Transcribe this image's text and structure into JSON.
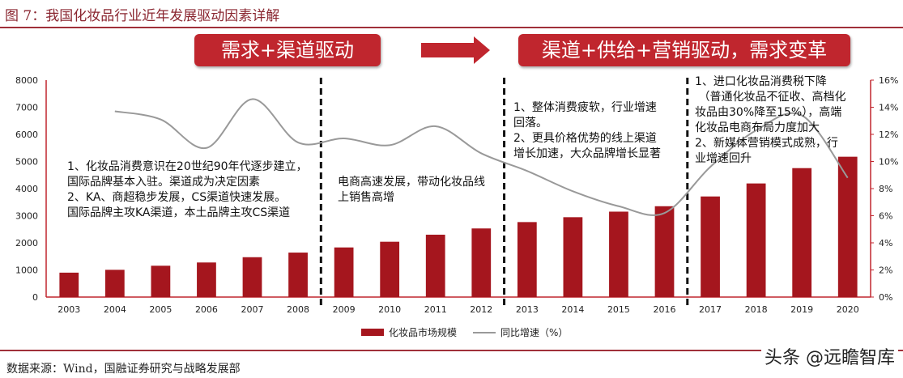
{
  "header": {
    "title": "图 7：我国化妆品行业近年发展驱动因素详解",
    "stage1_label": "需求+渠道驱动",
    "stage2_label": "渠道+供给+营销驱动，需求变革"
  },
  "colors": {
    "bar": "#a5161e",
    "line": "#999999",
    "banner": "#c0262e",
    "axis": "#c0262e"
  },
  "chart_data": {
    "type": "bar+line",
    "categories": [
      "2003",
      "2004",
      "2005",
      "2006",
      "2007",
      "2008",
      "2009",
      "2010",
      "2011",
      "2012",
      "2013",
      "2014",
      "2015",
      "2016",
      "2017",
      "2018",
      "2019",
      "2020"
    ],
    "series": [
      {
        "name": "化妆品市场规模",
        "type": "bar",
        "axis": "left",
        "values": [
          900,
          1005,
          1155,
          1275,
          1470,
          1640,
          1830,
          2040,
          2300,
          2530,
          2765,
          2945,
          3150,
          3350,
          3710,
          4190,
          4755,
          5175
        ]
      },
      {
        "name": "同比增速（%）",
        "type": "line",
        "axis": "right",
        "values": [
          null,
          13.7,
          13.1,
          11.0,
          14.6,
          11.4,
          11.7,
          11.2,
          12.6,
          10.6,
          9.3,
          7.8,
          6.7,
          6.2,
          9.6,
          12.3,
          13.4,
          8.8
        ]
      }
    ],
    "ylim_left": [
      0,
      8000
    ],
    "yticks_left": [
      "0",
      "1000",
      "2000",
      "3000",
      "4000",
      "5000",
      "6000",
      "7000",
      "8000"
    ],
    "ylim_right": [
      0,
      16
    ],
    "yticks_right": [
      "0%",
      "2%",
      "4%",
      "6%",
      "8%",
      "10%",
      "12%",
      "14%",
      "16%"
    ],
    "dividers_after": [
      "2008",
      "2012",
      "2016"
    ],
    "legend_position": "bottom",
    "grid": false,
    "annotations": [
      "1、化妆品消费意识在20世纪90年代逐步建立，\n国际品牌基本入驻。渠道成为决定因素\n2、KA、商超稳步发展，CS渠道快速发展。\n国际品牌主攻KA渠道，本土品牌主攻CS渠道",
      "电商高速发展，带动化妆品线\n上销售高增",
      "1、整体消费疲软，行业增速\n回落。\n2、更具价格优势的线上渠道\n增长加速，大众品牌增长显著",
      "1、进口化妆品消费税下降\n （普通化妆品不征收、高档化\n妆品由30%降至15%），高端\n化妆品电商布局力度加大\n2、新媒体营销模式成熟，行\n业增速回升"
    ]
  },
  "footer": {
    "source": "数据来源：Wind，国融证券研究与战略发展部",
    "watermark": "头条 @远瞻智库"
  }
}
